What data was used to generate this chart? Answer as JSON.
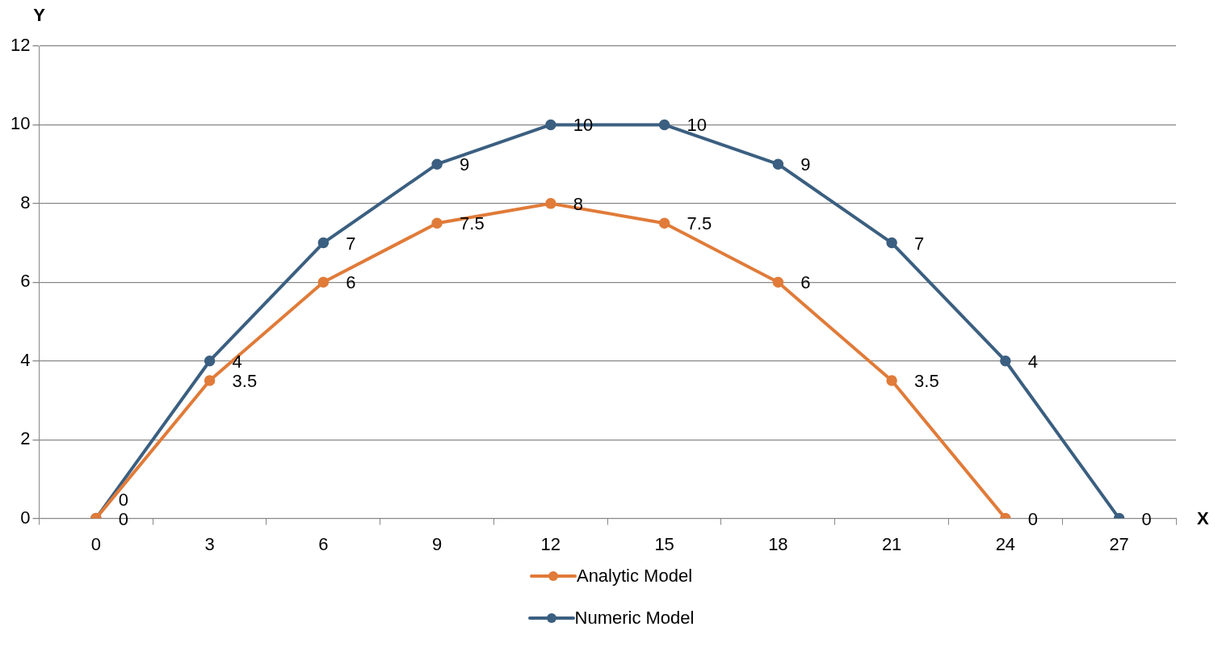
{
  "chart_data": {
    "type": "line",
    "xlabel": "X",
    "ylabel": "Y",
    "categories": [
      "0",
      "3",
      "6",
      "9",
      "12",
      "15",
      "18",
      "21",
      "24",
      "27"
    ],
    "series": [
      {
        "name": "Analytic Model",
        "color": "#e07b39",
        "values": [
          0,
          3.5,
          6,
          7.5,
          8,
          7.5,
          6,
          3.5,
          0,
          null
        ]
      },
      {
        "name": "Numeric Model",
        "color": "#3b5f80",
        "values": [
          0,
          4,
          7,
          9,
          10,
          10,
          9,
          7,
          4,
          0
        ]
      }
    ],
    "ylim": [
      0,
      12
    ],
    "yticks": [
      0,
      2,
      4,
      6,
      8,
      10,
      12
    ],
    "grid": "y",
    "legend": "bottom",
    "marker": "circle",
    "line_style": "solid",
    "data_labels": true
  }
}
